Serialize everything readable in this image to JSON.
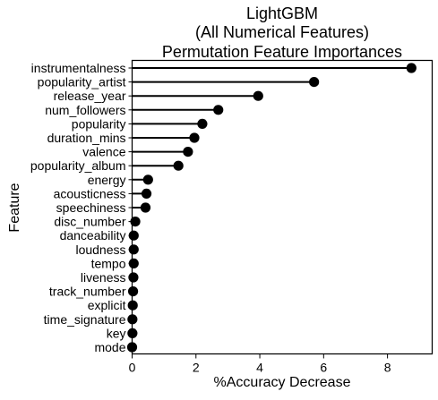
{
  "chart_data": {
    "type": "lollipop",
    "title_lines": [
      "LightGBM",
      "(All Numerical Features)",
      "Permutation Feature Importances"
    ],
    "xlabel": "%Accuracy Decrease",
    "ylabel": "Feature",
    "xlim": [
      0,
      9.4
    ],
    "xticks": [
      0,
      2,
      4,
      6,
      8
    ],
    "grid": false,
    "colors": {
      "marker": "#000000",
      "stem": "#000000"
    },
    "features": [
      {
        "name": "instrumentalness",
        "value": 8.75
      },
      {
        "name": "popularity_artist",
        "value": 5.7
      },
      {
        "name": "release_year",
        "value": 3.95
      },
      {
        "name": "num_followers",
        "value": 2.7
      },
      {
        "name": "popularity",
        "value": 2.2
      },
      {
        "name": "duration_mins",
        "value": 1.95
      },
      {
        "name": "valence",
        "value": 1.75
      },
      {
        "name": "popularity_album",
        "value": 1.45
      },
      {
        "name": "energy",
        "value": 0.5
      },
      {
        "name": "acousticness",
        "value": 0.45
      },
      {
        "name": "speechiness",
        "value": 0.42
      },
      {
        "name": "disc_number",
        "value": 0.1
      },
      {
        "name": "danceability",
        "value": 0.05
      },
      {
        "name": "loudness",
        "value": 0.05
      },
      {
        "name": "tempo",
        "value": 0.05
      },
      {
        "name": "liveness",
        "value": 0.04
      },
      {
        "name": "track_number",
        "value": 0.03
      },
      {
        "name": "explicit",
        "value": 0.02
      },
      {
        "name": "time_signature",
        "value": 0.01
      },
      {
        "name": "key",
        "value": 0.01
      },
      {
        "name": "mode",
        "value": 0.0
      }
    ]
  }
}
